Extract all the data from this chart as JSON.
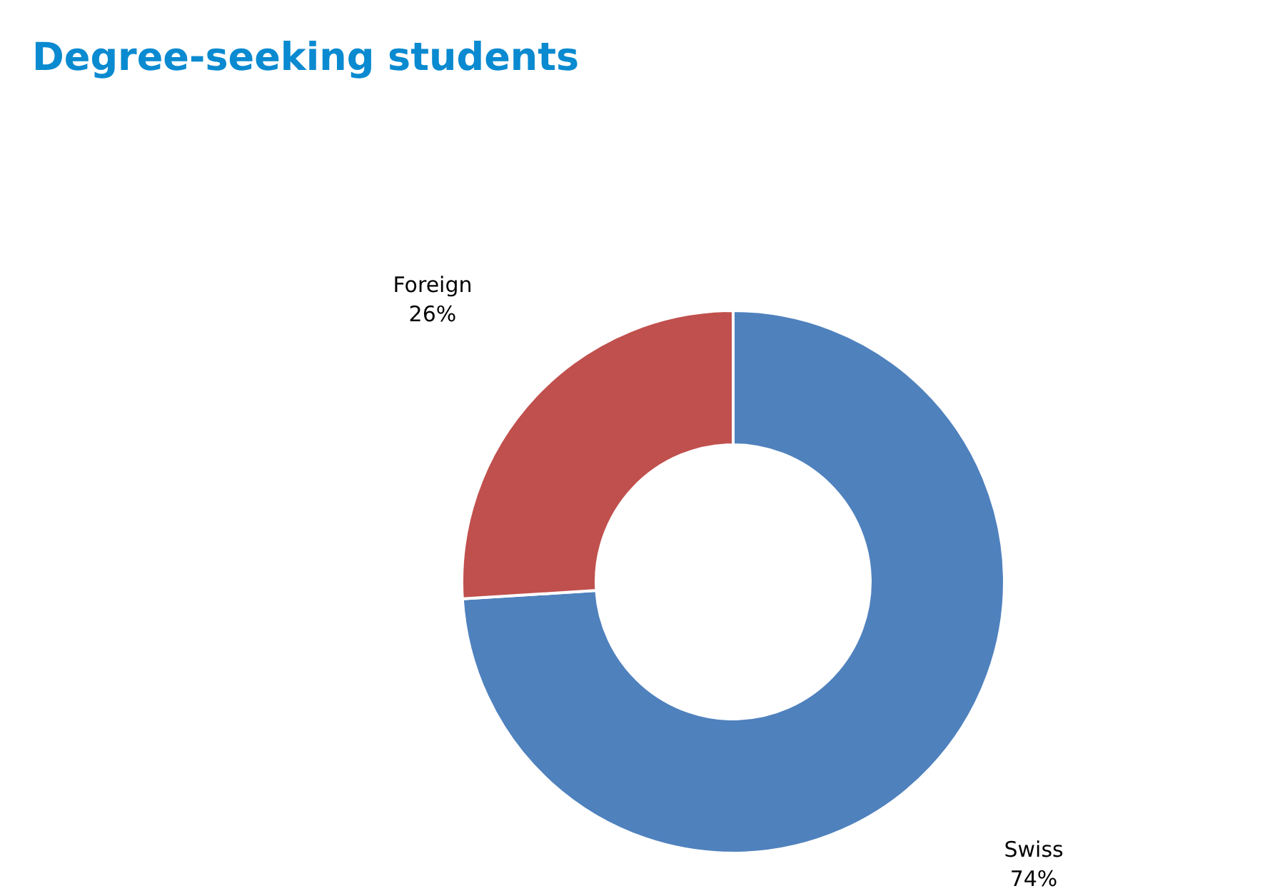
{
  "chart_data": {
    "type": "donut",
    "title": "Degree-seeking students",
    "categories": [
      "Swiss",
      "Foreign"
    ],
    "values": [
      74,
      26
    ],
    "colors": [
      "#4f81bd",
      "#c0504d"
    ],
    "value_labels": [
      "74%",
      "26%"
    ]
  }
}
